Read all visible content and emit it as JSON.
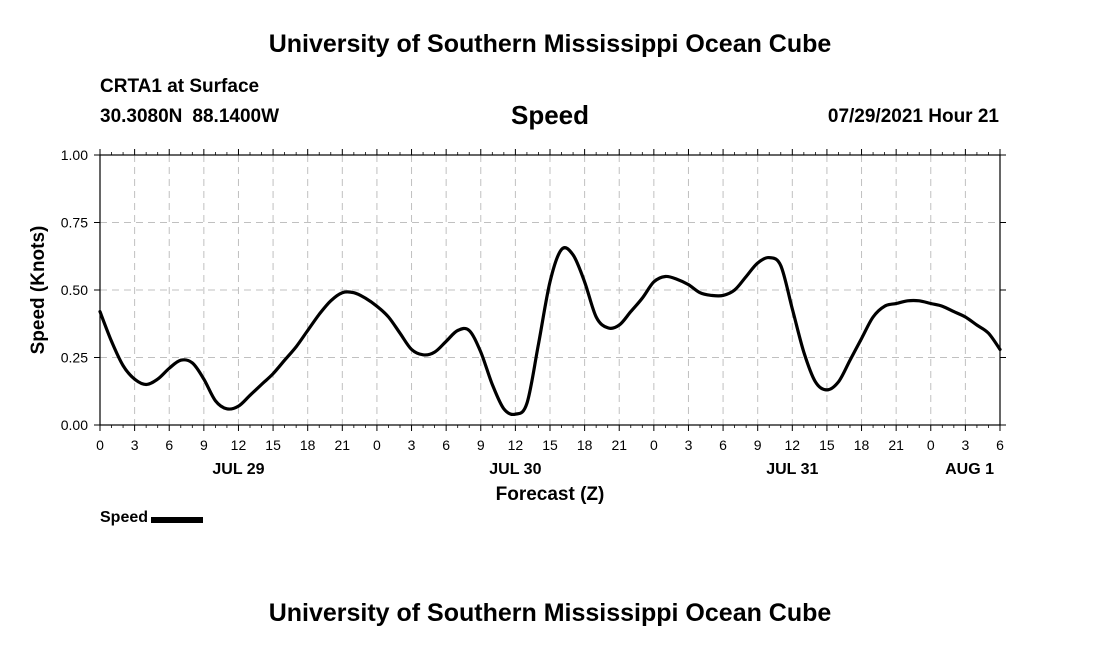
{
  "header": {
    "title": "University of Southern Mississippi Ocean Cube",
    "station": "CRTA1 at Surface",
    "latitude": "30.3080N",
    "longitude": "88.1400W",
    "variable": "Speed",
    "timestamp": "07/29/2021 Hour 21"
  },
  "footer": {
    "title": "University of Southern Mississippi Ocean Cube"
  },
  "legend": {
    "label": "Speed"
  },
  "colors": {
    "line": "#000000",
    "grid": "#c0c0c0"
  },
  "chart_data": {
    "type": "line",
    "title": "Speed",
    "xlabel": "Forecast (Z)",
    "ylabel": "Speed (Knots)",
    "xlim": [
      0,
      78
    ],
    "ylim": [
      0,
      1
    ],
    "grid": true,
    "y_ticks": [
      "0.00",
      "0.25",
      "0.50",
      "0.75",
      "1.00"
    ],
    "y_tick_values": [
      0,
      0.25,
      0.5,
      0.75,
      1.0
    ],
    "x_ticks": [
      "0",
      "3",
      "6",
      "9",
      "12",
      "15",
      "18",
      "21",
      "0",
      "3",
      "6",
      "9",
      "12",
      "15",
      "18",
      "21",
      "0",
      "3",
      "6",
      "9",
      "12",
      "15",
      "18",
      "21",
      "0",
      "3",
      "6"
    ],
    "date_labels": [
      {
        "label": "JUL 29",
        "hour": 12
      },
      {
        "label": "JUL 30",
        "hour": 36
      },
      {
        "label": "JUL 31",
        "hour": 60
      },
      {
        "label": "AUG 1",
        "hour": 78
      }
    ],
    "series": [
      {
        "name": "Speed",
        "x": [
          0,
          1,
          2,
          3,
          4,
          5,
          6,
          7,
          8,
          9,
          10,
          11,
          12,
          13,
          14,
          15,
          16,
          17,
          18,
          19,
          20,
          21,
          22,
          23,
          24,
          25,
          26,
          27,
          28,
          29,
          30,
          31,
          32,
          33,
          34,
          35,
          36,
          37,
          38,
          39,
          40,
          41,
          42,
          43,
          44,
          45,
          46,
          47,
          48,
          49,
          50,
          51,
          52,
          53,
          54,
          55,
          56,
          57,
          58,
          59,
          60,
          61,
          62,
          63,
          64,
          65,
          66,
          67,
          68,
          69,
          70,
          71,
          72,
          73,
          74,
          75,
          76,
          77,
          78
        ],
        "values": [
          0.42,
          0.31,
          0.22,
          0.17,
          0.15,
          0.17,
          0.21,
          0.24,
          0.23,
          0.17,
          0.09,
          0.06,
          0.07,
          0.11,
          0.15,
          0.19,
          0.24,
          0.29,
          0.35,
          0.41,
          0.46,
          0.49,
          0.49,
          0.47,
          0.44,
          0.4,
          0.34,
          0.28,
          0.26,
          0.27,
          0.31,
          0.35,
          0.35,
          0.27,
          0.15,
          0.06,
          0.04,
          0.08,
          0.3,
          0.53,
          0.65,
          0.63,
          0.53,
          0.4,
          0.36,
          0.37,
          0.42,
          0.47,
          0.53,
          0.55,
          0.54,
          0.52,
          0.49,
          0.48,
          0.48,
          0.5,
          0.55,
          0.6,
          0.62,
          0.59,
          0.43,
          0.27,
          0.16,
          0.13,
          0.16,
          0.24,
          0.32,
          0.4,
          0.44,
          0.45,
          0.46,
          0.46,
          0.45,
          0.44,
          0.42,
          0.4,
          0.37,
          0.34,
          0.28
        ]
      }
    ]
  }
}
